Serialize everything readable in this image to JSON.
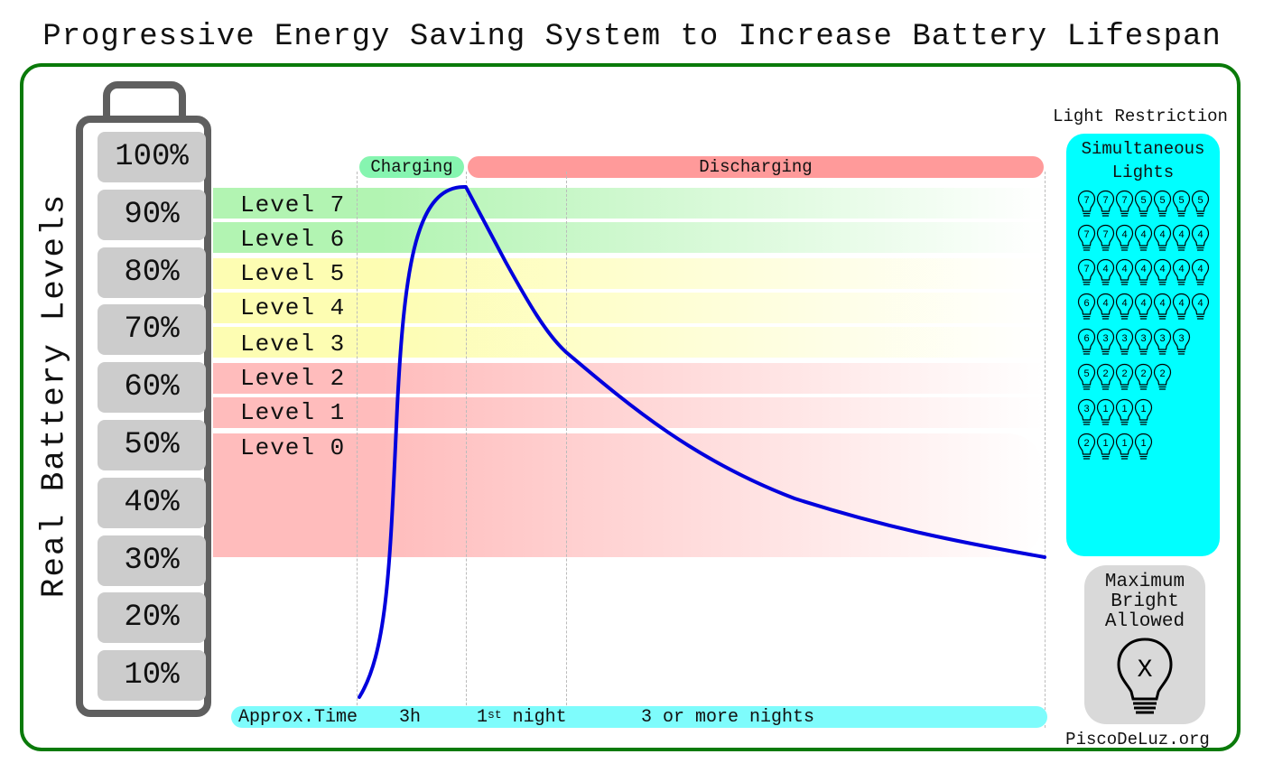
{
  "title": "Progressive Energy Saving System to Increase Battery Lifespan",
  "y_axis_label": "Real Battery Levels",
  "battery_levels": [
    "100%",
    "90%",
    "80%",
    "70%",
    "60%",
    "50%",
    "40%",
    "30%",
    "20%",
    "10%"
  ],
  "phases": {
    "charging": "Charging",
    "discharging": "Discharging"
  },
  "levels": [
    {
      "label": "Level 7",
      "zone": "green"
    },
    {
      "label": "Level 6",
      "zone": "green"
    },
    {
      "label": "Level 5",
      "zone": "yellow"
    },
    {
      "label": "Level 4",
      "zone": "yellow"
    },
    {
      "label": "Level 3",
      "zone": "yellow"
    },
    {
      "label": "Level 2",
      "zone": "red"
    },
    {
      "label": "Level 1",
      "zone": "red"
    },
    {
      "label": "Level 0",
      "zone": "red"
    }
  ],
  "time_axis": {
    "label": "Approx.Time",
    "segments": [
      "3h",
      "1",
      "st",
      "night",
      "3 or more nights"
    ]
  },
  "light_restriction": {
    "title": "Light Restriction",
    "header_line1": "Simultaneous",
    "header_line2": "Lights",
    "rows": [
      [
        "7",
        "7",
        "7",
        "5",
        "5",
        "5",
        "5"
      ],
      [
        "7",
        "7",
        "4",
        "4",
        "4",
        "4",
        "4"
      ],
      [
        "7",
        "4",
        "4",
        "4",
        "4",
        "4",
        "4"
      ],
      [
        "6",
        "4",
        "4",
        "4",
        "4",
        "4",
        "4"
      ],
      [
        "6",
        "3",
        "3",
        "3",
        "3",
        "3"
      ],
      [
        "5",
        "2",
        "2",
        "2",
        "2"
      ],
      [
        "3",
        "1",
        "1",
        "1"
      ],
      [
        "2",
        "1",
        "1",
        "1"
      ]
    ]
  },
  "max_bright": {
    "line1": "Maximum",
    "line2": "Bright",
    "line3": "Allowed",
    "symbol": "X"
  },
  "website": "PiscoDeLuz.org",
  "colors": {
    "frame": "#0a7a0a",
    "curve": "#0000dd",
    "charging": "#86f5b0",
    "discharging": "#ff9a9a",
    "green_zone": "#b2f4b2",
    "yellow_zone": "#fdfdb2",
    "red_zone": "#ffbcbc",
    "panel": "#00ffff",
    "time_bar": "#7efcfc"
  },
  "icons": [
    "battery-icon",
    "light-bulb-icon"
  ]
}
